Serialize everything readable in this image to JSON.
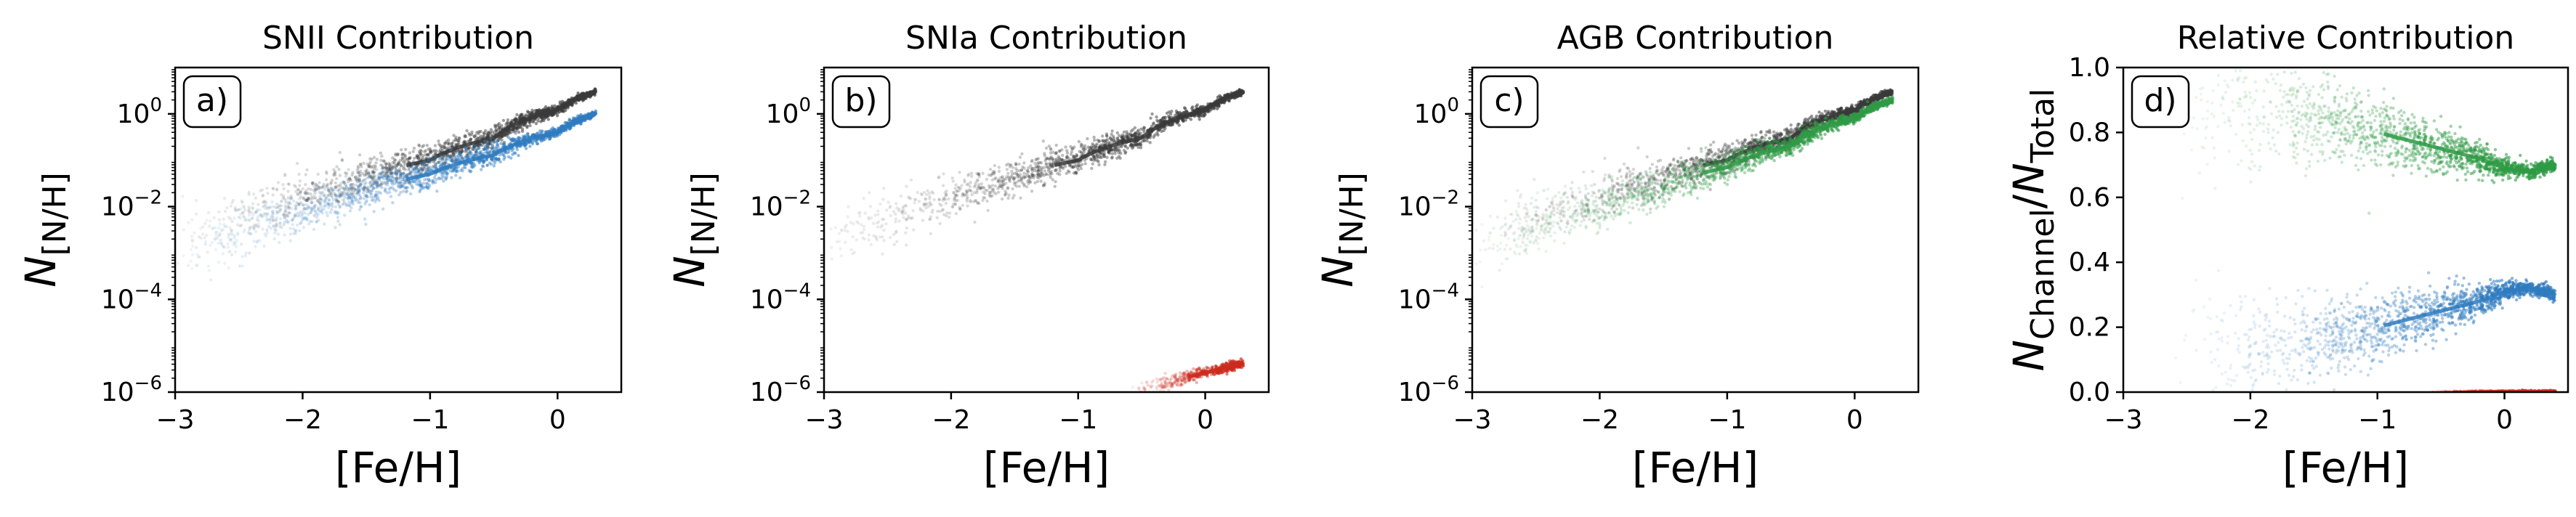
{
  "figure": {
    "panels": [
      {
        "title": "SNII Contribution",
        "panel_label": "a)",
        "ylabel_main": "N",
        "ylabel_sub": "[N/H]",
        "xlabel": "[Fe/H]",
        "x_ticks": [
          "−3",
          "−2",
          "−1",
          "0"
        ],
        "y_ticks": [
          {
            "base": "10",
            "exp": "0"
          },
          {
            "base": "10",
            "exp": "−2"
          },
          {
            "base": "10",
            "exp": "−4"
          },
          {
            "base": "10",
            "exp": "−6"
          }
        ]
      },
      {
        "title": "SNIa Contribution",
        "panel_label": "b)",
        "ylabel_main": "N",
        "ylabel_sub": "[N/H]",
        "xlabel": "[Fe/H]",
        "x_ticks": [
          "−3",
          "−2",
          "−1",
          "0"
        ],
        "y_ticks": [
          {
            "base": "10",
            "exp": "0"
          },
          {
            "base": "10",
            "exp": "−2"
          },
          {
            "base": "10",
            "exp": "−4"
          },
          {
            "base": "10",
            "exp": "−6"
          }
        ]
      },
      {
        "title": "AGB Contribution",
        "panel_label": "c)",
        "ylabel_main": "N",
        "ylabel_sub": "[N/H]",
        "xlabel": "[Fe/H]",
        "x_ticks": [
          "−3",
          "−2",
          "−1",
          "0"
        ],
        "y_ticks": [
          {
            "base": "10",
            "exp": "0"
          },
          {
            "base": "10",
            "exp": "−2"
          },
          {
            "base": "10",
            "exp": "−4"
          },
          {
            "base": "10",
            "exp": "−6"
          }
        ]
      },
      {
        "title": "Relative Contribution",
        "panel_label": "d)",
        "ylabel_main": "N",
        "ylabel_sub": "Channel",
        "ylabel_main2": "N",
        "ylabel_sub2": "Total",
        "ylabel_slash": "/",
        "xlabel": "[Fe/H]",
        "x_ticks": [
          "−3",
          "−2",
          "−1",
          "0"
        ],
        "y_ticks": [
          "0.0",
          "0.2",
          "0.4",
          "0.6",
          "0.8",
          "1.0"
        ]
      }
    ]
  },
  "colors": {
    "total": "#3a3a3a",
    "snii": "#2f7bbf",
    "snia": "#cc2a1e",
    "agb": "#2e9a44"
  },
  "chart_data": [
    {
      "type": "scatter",
      "title": "SNII Contribution",
      "xlabel": "[Fe/H]",
      "ylabel": "N_[N/H]",
      "xlim": [
        -3,
        0.5
      ],
      "ylim": [
        1e-06,
        10
      ],
      "yscale": "log",
      "grid": false,
      "series": [
        {
          "x": [
            -3.0,
            -2.5,
            -2.0,
            -1.5,
            -1.0,
            -0.5,
            0.0,
            0.3
          ],
          "y": [
            0.0015,
            0.005,
            0.015,
            0.04,
            0.1,
            0.3,
            1.2,
            3.0
          ],
          "band_dex": [
            0.35,
            0.3,
            0.25,
            0.2,
            0.15,
            0.1,
            0.05,
            0.03
          ]
        },
        {
          "x": [
            -3.0,
            -2.5,
            -2.0,
            -1.5,
            -1.0,
            -0.5,
            0.0,
            0.3
          ],
          "y": [
            0.0008,
            0.0025,
            0.007,
            0.02,
            0.05,
            0.13,
            0.4,
            1.0
          ],
          "band_dex": [
            0.35,
            0.3,
            0.25,
            0.2,
            0.15,
            0.1,
            0.05,
            0.03
          ]
        }
      ]
    },
    {
      "type": "scatter",
      "title": "SNIa Contribution",
      "xlabel": "[Fe/H]",
      "ylabel": "N_[N/H]",
      "xlim": [
        -3,
        0.5
      ],
      "ylim": [
        1e-06,
        10
      ],
      "yscale": "log",
      "grid": false,
      "series": [
        {
          "x": [
            -3.0,
            -2.5,
            -2.0,
            -1.5,
            -1.0,
            -0.5,
            0.0,
            0.3
          ],
          "y": [
            0.0015,
            0.005,
            0.015,
            0.04,
            0.1,
            0.3,
            1.2,
            3.0
          ],
          "band_dex": [
            0.35,
            0.3,
            0.25,
            0.2,
            0.15,
            0.1,
            0.05,
            0.03
          ]
        },
        {
          "x": [
            -0.65,
            -0.4,
            -0.2,
            0.0,
            0.15,
            0.3
          ],
          "y": [
            8e-07,
            1.3e-06,
            1.9e-06,
            2.6e-06,
            3.3e-06,
            4.2e-06
          ],
          "band_dex": [
            0.08,
            0.08,
            0.07,
            0.06,
            0.05,
            0.05
          ]
        }
      ]
    },
    {
      "type": "scatter",
      "title": "AGB Contribution",
      "xlabel": "[Fe/H]",
      "ylabel": "N_[N/H]",
      "xlim": [
        -3,
        0.5
      ],
      "ylim": [
        1e-06,
        10
      ],
      "yscale": "log",
      "grid": false,
      "series": [
        {
          "x": [
            -3.0,
            -2.5,
            -2.0,
            -1.5,
            -1.0,
            -0.5,
            0.0,
            0.3
          ],
          "y": [
            0.0015,
            0.005,
            0.015,
            0.04,
            0.1,
            0.3,
            1.2,
            3.0
          ],
          "band_dex": [
            0.35,
            0.3,
            0.25,
            0.2,
            0.15,
            0.1,
            0.05,
            0.03
          ]
        },
        {
          "x": [
            -3.0,
            -2.5,
            -2.0,
            -1.5,
            -1.0,
            -0.5,
            0.0,
            0.3
          ],
          "y": [
            0.0008,
            0.0028,
            0.009,
            0.025,
            0.07,
            0.2,
            0.8,
            2.0
          ],
          "band_dex": [
            0.35,
            0.3,
            0.25,
            0.2,
            0.15,
            0.1,
            0.05,
            0.03
          ]
        }
      ]
    },
    {
      "type": "scatter",
      "title": "Relative Contribution",
      "xlabel": "[Fe/H]",
      "ylabel": "N_Channel/N_Total",
      "xlim": [
        -3,
        0.5
      ],
      "ylim": [
        0,
        1
      ],
      "grid": false,
      "series": [
        {
          "x": [
            -2.6,
            -2.2,
            -1.8,
            -1.4,
            -1.0,
            -0.6,
            -0.2,
            0.0,
            0.2,
            0.4
          ],
          "y": [
            0.82,
            0.86,
            0.87,
            0.84,
            0.8,
            0.76,
            0.72,
            0.69,
            0.68,
            0.7
          ],
          "spread": [
            0.12,
            0.1,
            0.08,
            0.07,
            0.05,
            0.04,
            0.025,
            0.015,
            0.01,
            0.01
          ]
        },
        {
          "x": [
            -2.6,
            -2.2,
            -1.8,
            -1.4,
            -1.0,
            -0.6,
            -0.2,
            0.0,
            0.2,
            0.4
          ],
          "y": [
            0.1,
            0.13,
            0.14,
            0.17,
            0.2,
            0.24,
            0.28,
            0.31,
            0.32,
            0.3
          ],
          "spread": [
            0.1,
            0.09,
            0.08,
            0.06,
            0.05,
            0.04,
            0.025,
            0.015,
            0.01,
            0.01
          ]
        },
        {
          "x": [
            -0.6,
            0.0,
            0.4
          ],
          "y": [
            0.0,
            0.0,
            0.0
          ],
          "spread": [
            0.002,
            0.002,
            0.002
          ]
        }
      ]
    }
  ]
}
